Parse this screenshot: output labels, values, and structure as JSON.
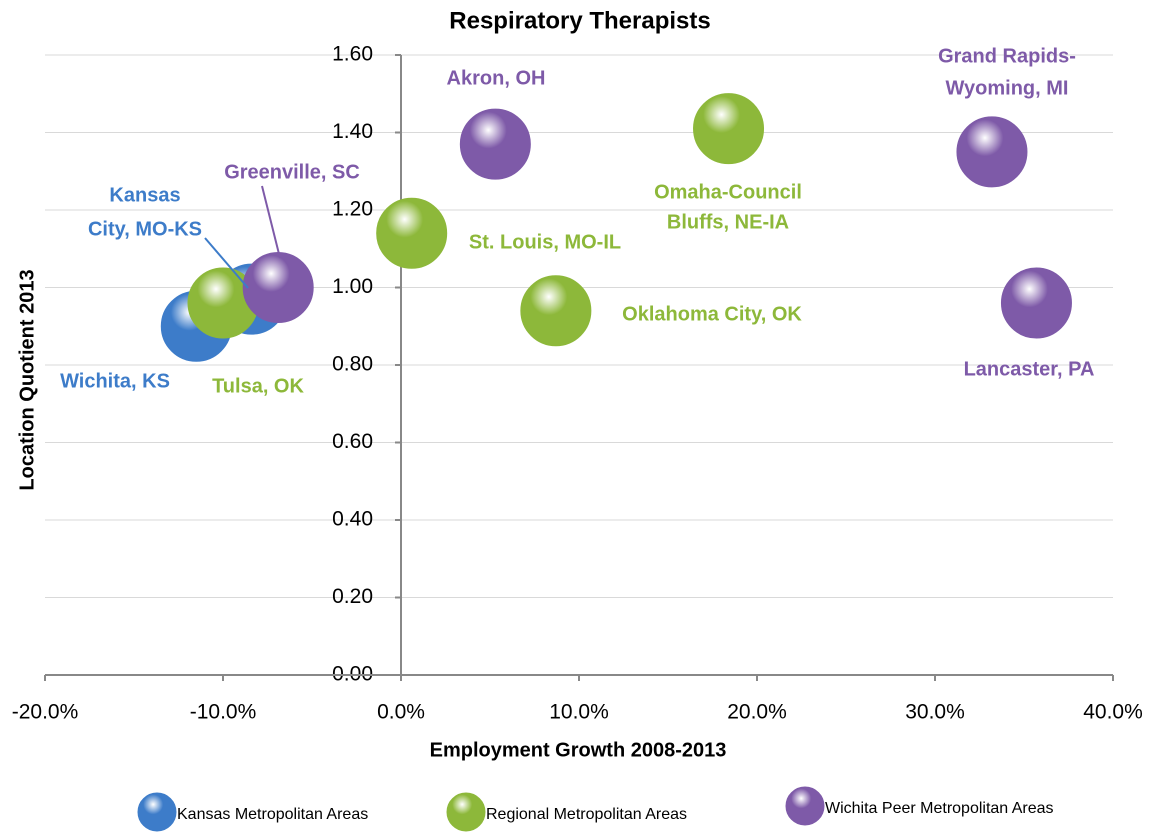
{
  "chart_data": {
    "type": "scatter",
    "title": "Respiratory Therapists",
    "xlabel": "Employment Growth 2008-2013",
    "ylabel": "Location Quotient 2013",
    "xlim": [
      -20,
      40
    ],
    "ylim": [
      0,
      1.6
    ],
    "xticks": [
      {
        "value": -20,
        "label": "-20.0%"
      },
      {
        "value": -10,
        "label": "-10.0%"
      },
      {
        "value": 0,
        "label": "0.0%"
      },
      {
        "value": 10,
        "label": "10.0%"
      },
      {
        "value": 20,
        "label": "20.0%"
      },
      {
        "value": 30,
        "label": "30.0%"
      },
      {
        "value": 40,
        "label": "40.0%"
      }
    ],
    "yticks": [
      {
        "value": 0,
        "label": "0.00"
      },
      {
        "value": 0.2,
        "label": "0.20"
      },
      {
        "value": 0.4,
        "label": "0.40"
      },
      {
        "value": 0.6,
        "label": "0.60"
      },
      {
        "value": 0.8,
        "label": "0.80"
      },
      {
        "value": 1.0,
        "label": "1.00"
      },
      {
        "value": 1.2,
        "label": "1.20"
      },
      {
        "value": 1.4,
        "label": "1.40"
      },
      {
        "value": 1.6,
        "label": "1.60"
      }
    ],
    "grid": true,
    "series": [
      {
        "name": "Kansas Metropolitan Areas",
        "color": "#3d7cc9",
        "x": [
          -11.5,
          -8.4
        ],
        "values": [
          0.9,
          0.97
        ],
        "labels": [
          [
            "Wichita, KS"
          ],
          [
            "Kansas",
            "City, MO-KS"
          ]
        ]
      },
      {
        "name": "Regional Metropolitan Areas",
        "color": "#8db83a",
        "x": [
          -10.0,
          0.6,
          8.7,
          18.4
        ],
        "values": [
          0.96,
          1.14,
          0.94,
          1.41
        ],
        "labels": [
          [
            "Tulsa, OK"
          ],
          [
            "St. Louis, MO-IL"
          ],
          [
            "Oklahoma City, OK"
          ],
          [
            "Omaha-Council",
            "Bluffs, NE-IA"
          ]
        ]
      },
      {
        "name": "Wichita Peer Metropolitan Areas",
        "color": "#7e5aa8",
        "x": [
          -6.9,
          5.3,
          33.2,
          35.7
        ],
        "values": [
          1.0,
          1.37,
          1.35,
          0.96
        ],
        "labels": [
          [
            "Greenville, SC"
          ],
          [
            "Akron, OH"
          ],
          [
            "Grand Rapids-",
            "Wyoming, MI"
          ],
          [
            "Lancaster, PA"
          ]
        ]
      }
    ]
  }
}
